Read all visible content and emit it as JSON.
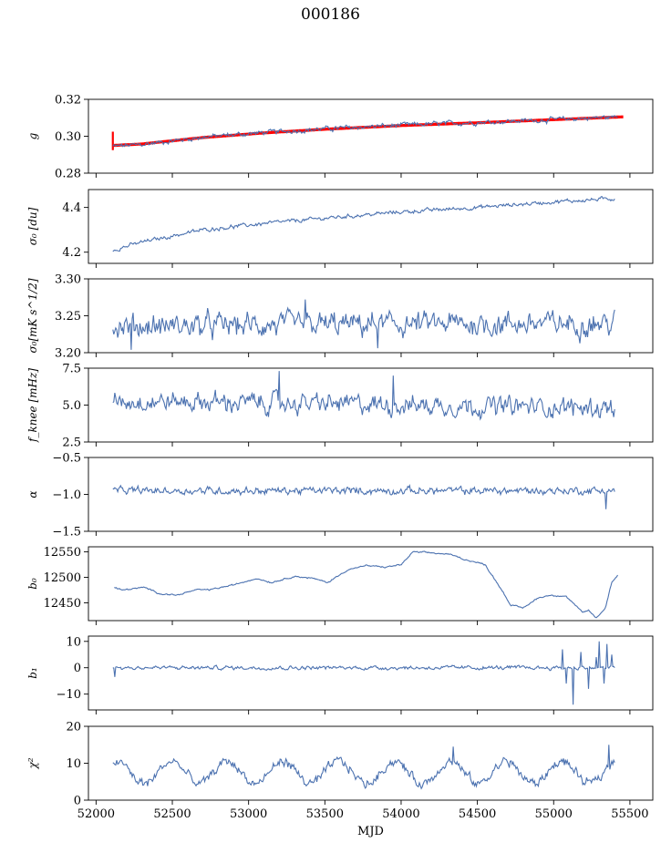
{
  "figure": {
    "title": "000186"
  },
  "chart_data": {
    "type": "line",
    "shared_x": {
      "label": "MJD",
      "range": [
        51950,
        55650
      ],
      "ticks": [
        52000,
        52500,
        53000,
        53500,
        54000,
        54500,
        55000,
        55500
      ],
      "tick_labels": [
        "52000",
        "52500",
        "53000",
        "53500",
        "54000",
        "54500",
        "55000",
        "55500"
      ]
    },
    "series_color": "#4c72b0",
    "overlay_color": "#ff0000",
    "panels": [
      {
        "id": "g",
        "ylabel": "g",
        "ylim": [
          0.28,
          0.32
        ],
        "yticks": [
          0.28,
          0.3,
          0.32
        ],
        "ytick_labels": [
          "0.28",
          "0.30",
          "0.32"
        ],
        "trend": {
          "x": [
            52110,
            52300,
            52700,
            53100,
            53500,
            54000,
            54500,
            55000,
            55420
          ],
          "y": [
            0.2945,
            0.2955,
            0.2995,
            0.302,
            0.304,
            0.306,
            0.3075,
            0.309,
            0.3105
          ]
        },
        "noise": 0.0009,
        "overlay": {
          "x": [
            52110,
            52300,
            52700,
            53100,
            53500,
            54000,
            54500,
            55000,
            55450
          ],
          "y": [
            0.295,
            0.2958,
            0.2993,
            0.3018,
            0.3038,
            0.3058,
            0.3073,
            0.309,
            0.3105
          ],
          "spread": 0.0016
        }
      },
      {
        "id": "sigma0",
        "ylabel": "σ₀ [du]",
        "ylim": [
          4.15,
          4.48
        ],
        "yticks": [
          4.2,
          4.4
        ],
        "ytick_labels": [
          "4.2",
          "4.4"
        ],
        "trend": {
          "x": [
            52110,
            52300,
            52700,
            53100,
            53500,
            54000,
            54500,
            55000,
            55400
          ],
          "y": [
            4.21,
            4.245,
            4.3,
            4.328,
            4.352,
            4.38,
            4.4,
            4.425,
            4.44
          ]
        },
        "noise": 0.006
      },
      {
        "id": "sigma0_mk",
        "ylabel": "σ₀[mK s^1/2]",
        "ylim": [
          3.2,
          3.3
        ],
        "yticks": [
          3.2,
          3.25,
          3.3
        ],
        "ytick_labels": [
          "3.20",
          "3.25",
          "3.30"
        ],
        "trend": {
          "x": [
            52110,
            55400
          ],
          "y": [
            3.236,
            3.24
          ]
        },
        "noise": 0.011,
        "spikes": [
          {
            "x": 53370,
            "y": 3.272
          },
          {
            "x": 52230,
            "y": 3.204
          },
          {
            "x": 53850,
            "y": 3.206
          }
        ]
      },
      {
        "id": "fknee",
        "ylabel": "f_knee [mHz]",
        "ylim": [
          2.5,
          7.5
        ],
        "yticks": [
          2.5,
          5.0,
          7.5
        ],
        "ytick_labels": [
          "2.5",
          "5.0",
          "7.5"
        ],
        "trend": {
          "x": [
            52110,
            55400
          ],
          "y": [
            5.3,
            4.8
          ]
        },
        "noise": 0.45,
        "spikes": [
          {
            "x": 53200,
            "y": 7.3
          },
          {
            "x": 53950,
            "y": 7.0
          }
        ]
      },
      {
        "id": "alpha",
        "ylabel": "α",
        "ylim": [
          -1.5,
          -0.5
        ],
        "yticks": [
          -1.5,
          -1.0,
          -0.5
        ],
        "ytick_labels": [
          "−1.5",
          "−1.0",
          "−0.5"
        ],
        "trend": {
          "x": [
            52110,
            55400
          ],
          "y": [
            -0.95,
            -0.95
          ]
        },
        "noise": 0.035,
        "spikes": [
          {
            "x": 55340,
            "y": -1.2
          }
        ]
      },
      {
        "id": "b0",
        "ylabel": "b₀",
        "ylim": [
          12415,
          12560
        ],
        "yticks": [
          12450,
          12500,
          12550
        ],
        "ytick_labels": [
          "12450",
          "12500",
          "12550"
        ],
        "trend": {
          "x": [
            52120,
            52170,
            52250,
            52320,
            52420,
            52530,
            52650,
            52750,
            52900,
            53050,
            53150,
            53300,
            53420,
            53520,
            53650,
            53770,
            53900,
            54000,
            54080,
            54200,
            54320,
            54420,
            54550,
            54650,
            54720,
            54800,
            54900,
            54980,
            55080,
            55160,
            55190,
            55230,
            55280,
            55340,
            55380,
            55420
          ],
          "y": [
            12480,
            12475,
            12478,
            12480,
            12468,
            12465,
            12475,
            12476,
            12485,
            12498,
            12490,
            12502,
            12498,
            12490,
            12515,
            12523,
            12520,
            12525,
            12550,
            12548,
            12545,
            12535,
            12525,
            12480,
            12445,
            12440,
            12460,
            12465,
            12463,
            12440,
            12430,
            12435,
            12420,
            12440,
            12490,
            12505
          ]
        },
        "noise": 1.0
      },
      {
        "id": "b1",
        "ylabel": "b₁",
        "ylim": [
          -16,
          12
        ],
        "yticks": [
          -10,
          0,
          10
        ],
        "ytick_labels": [
          "−10",
          "0",
          "10"
        ],
        "trend": {
          "x": [
            52110,
            55400
          ],
          "y": [
            0,
            0
          ]
        },
        "noise": 0.5,
        "spikes": [
          {
            "x": 52120,
            "y": -3.5
          },
          {
            "x": 55060,
            "y": 7
          },
          {
            "x": 55080,
            "y": -6
          },
          {
            "x": 55130,
            "y": -14
          },
          {
            "x": 55180,
            "y": 6
          },
          {
            "x": 55230,
            "y": -8
          },
          {
            "x": 55280,
            "y": 4
          },
          {
            "x": 55300,
            "y": 10
          },
          {
            "x": 55330,
            "y": -6
          },
          {
            "x": 55350,
            "y": 9
          },
          {
            "x": 55380,
            "y": 5
          }
        ]
      },
      {
        "id": "chi2",
        "ylabel": "χ²",
        "ylim": [
          0,
          20
        ],
        "yticks": [
          0,
          10,
          20
        ],
        "ytick_labels": [
          "0",
          "10",
          "20"
        ],
        "trend": {
          "x": [
            52110,
            55400
          ],
          "y": [
            7.5,
            7.5
          ]
        },
        "noise": 0.9,
        "oscillation": {
          "amplitude": 3.0,
          "period": 365
        },
        "spikes": [
          {
            "x": 54340,
            "y": 14.5
          },
          {
            "x": 55360,
            "y": 15
          }
        ]
      }
    ]
  }
}
